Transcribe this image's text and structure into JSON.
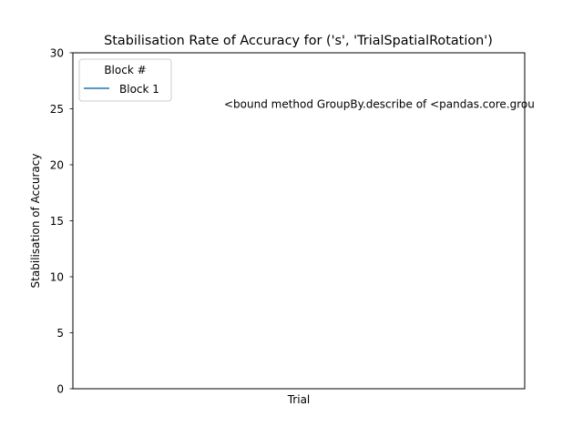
{
  "chart_data": {
    "type": "line",
    "title": "Stabilisation Rate of Accuracy for ('s', 'TrialSpatialRotation')",
    "xlabel": "Trial",
    "ylabel": "Stabilisation of Accuracy",
    "ylim": [
      0,
      30
    ],
    "yticks": [
      "0",
      "5",
      "10",
      "15",
      "20",
      "25",
      "30"
    ],
    "xticks": [],
    "grid": false,
    "legend": {
      "title": "Block #",
      "placement": "top-left",
      "entries": [
        {
          "name": "Block 1",
          "color": "#1f77b4"
        }
      ]
    },
    "series": [
      {
        "name": "Block 1",
        "color": "#1f77b4",
        "values": []
      }
    ],
    "annotations": [
      {
        "text": "<bound method GroupBy.describe of <pandas.core.grou",
        "y": 25
      }
    ]
  }
}
